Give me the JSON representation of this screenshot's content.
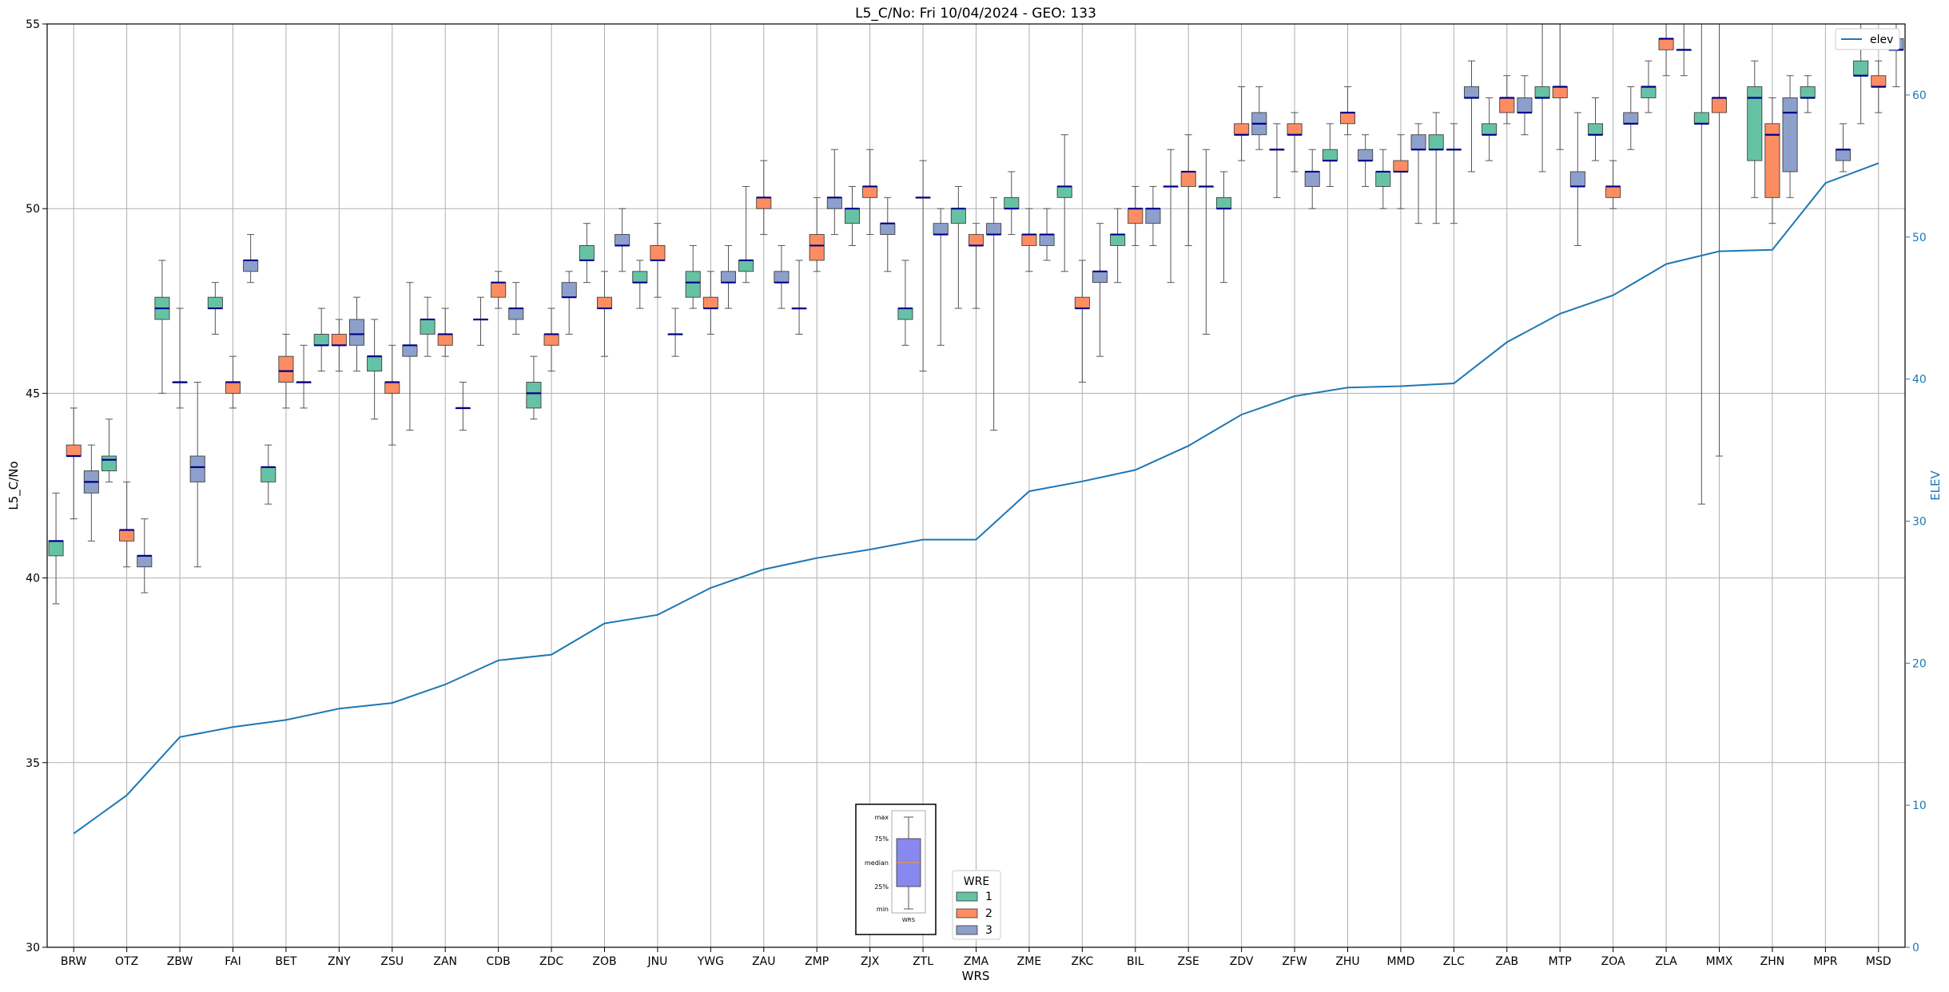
{
  "chart_data": {
    "type": "box",
    "title": "L5_C/No: Fri 10/04/2024 - GEO: 133",
    "xlabel": "WRS",
    "ylabel": "L5_C/No",
    "y2label": "ELEV",
    "ylim": [
      30,
      55
    ],
    "y2lim": [
      0,
      65
    ],
    "yticks": [
      "30",
      "35",
      "40",
      "45",
      "50",
      "55"
    ],
    "y2ticks": [
      "0",
      "10",
      "20",
      "30",
      "40",
      "50",
      "60"
    ],
    "grid": true,
    "categories": [
      "BRW",
      "OTZ",
      "ZBW",
      "FAI",
      "BET",
      "ZNY",
      "ZSU",
      "ZAN",
      "CDB",
      "ZDC",
      "ZOB",
      "JNU",
      "YWG",
      "ZAU",
      "ZMP",
      "ZJX",
      "ZTL",
      "ZMA",
      "ZME",
      "ZKC",
      "BIL",
      "ZSE",
      "ZDV",
      "ZFW",
      "ZHU",
      "MMD",
      "ZLC",
      "ZAB",
      "MTP",
      "ZOA",
      "ZLA",
      "MMX",
      "ZHN",
      "MPR",
      "MSD"
    ],
    "wre_colors": {
      "1": "#66c2a5",
      "2": "#fc8d62",
      "3": "#8da0cb"
    },
    "legend": {
      "title": "WRE",
      "placement": "lower-center",
      "entries": [
        {
          "label": "1",
          "color": "#66c2a5"
        },
        {
          "label": "2",
          "color": "#fc8d62"
        },
        {
          "label": "3",
          "color": "#8da0cb"
        }
      ]
    },
    "elev_legend": {
      "label": "elev",
      "placement": "top-right",
      "color": "#1f77b4"
    },
    "key_box": {
      "labels": [
        "max",
        "75%",
        "median",
        "25%",
        "min"
      ],
      "xlabel": "WRS",
      "color": "#8888ee"
    },
    "boxes": [
      {
        "cat": "BRW",
        "wre": 1,
        "min": 39.3,
        "q1": 40.6,
        "med": 41.0,
        "q3": 41.0,
        "max": 42.3
      },
      {
        "cat": "BRW",
        "wre": 2,
        "min": 41.6,
        "q1": 43.3,
        "med": 43.3,
        "q3": 43.6,
        "max": 44.6
      },
      {
        "cat": "BRW",
        "wre": 3,
        "min": 41.0,
        "q1": 42.3,
        "med": 42.6,
        "q3": 42.9,
        "max": 43.6
      },
      {
        "cat": "OTZ",
        "wre": 1,
        "min": 42.6,
        "q1": 42.9,
        "med": 43.2,
        "q3": 43.3,
        "max": 44.3
      },
      {
        "cat": "OTZ",
        "wre": 2,
        "min": 40.3,
        "q1": 41.0,
        "med": 41.3,
        "q3": 41.3,
        "max": 42.6
      },
      {
        "cat": "OTZ",
        "wre": 3,
        "min": 39.6,
        "q1": 40.3,
        "med": 40.6,
        "q3": 40.6,
        "max": 41.6
      },
      {
        "cat": "ZBW",
        "wre": 1,
        "min": 45.0,
        "q1": 47.0,
        "med": 47.3,
        "q3": 47.6,
        "max": 48.6
      },
      {
        "cat": "ZBW",
        "wre": 2,
        "min": 44.6,
        "q1": 45.3,
        "med": 45.3,
        "q3": 45.3,
        "max": 47.3
      },
      {
        "cat": "ZBW",
        "wre": 3,
        "min": 40.3,
        "q1": 42.6,
        "med": 43.0,
        "q3": 43.3,
        "max": 45.3
      },
      {
        "cat": "FAI",
        "wre": 1,
        "min": 46.6,
        "q1": 47.3,
        "med": 47.3,
        "q3": 47.6,
        "max": 48.0
      },
      {
        "cat": "FAI",
        "wre": 2,
        "min": 44.6,
        "q1": 45.0,
        "med": 45.3,
        "q3": 45.3,
        "max": 46.0
      },
      {
        "cat": "FAI",
        "wre": 3,
        "min": 48.0,
        "q1": 48.3,
        "med": 48.6,
        "q3": 48.6,
        "max": 49.3
      },
      {
        "cat": "BET",
        "wre": 1,
        "min": 42.0,
        "q1": 42.6,
        "med": 43.0,
        "q3": 43.0,
        "max": 43.6
      },
      {
        "cat": "BET",
        "wre": 2,
        "min": 44.6,
        "q1": 45.3,
        "med": 45.6,
        "q3": 46.0,
        "max": 46.6
      },
      {
        "cat": "BET",
        "wre": 3,
        "min": 44.6,
        "q1": 45.3,
        "med": 45.3,
        "q3": 45.3,
        "max": 46.3
      },
      {
        "cat": "ZNY",
        "wre": 1,
        "min": 45.6,
        "q1": 46.3,
        "med": 46.3,
        "q3": 46.6,
        "max": 47.3
      },
      {
        "cat": "ZNY",
        "wre": 2,
        "min": 45.6,
        "q1": 46.3,
        "med": 46.3,
        "q3": 46.6,
        "max": 47.0
      },
      {
        "cat": "ZNY",
        "wre": 3,
        "min": 45.6,
        "q1": 46.3,
        "med": 46.6,
        "q3": 47.0,
        "max": 47.6
      },
      {
        "cat": "ZSU",
        "wre": 1,
        "min": 44.3,
        "q1": 45.6,
        "med": 46.0,
        "q3": 46.0,
        "max": 47.0
      },
      {
        "cat": "ZSU",
        "wre": 2,
        "min": 43.6,
        "q1": 45.0,
        "med": 45.3,
        "q3": 45.3,
        "max": 46.3
      },
      {
        "cat": "ZSU",
        "wre": 3,
        "min": 44.0,
        "q1": 46.0,
        "med": 46.3,
        "q3": 46.3,
        "max": 48.0
      },
      {
        "cat": "ZAN",
        "wre": 1,
        "min": 46.0,
        "q1": 46.6,
        "med": 47.0,
        "q3": 47.0,
        "max": 47.6
      },
      {
        "cat": "ZAN",
        "wre": 2,
        "min": 46.0,
        "q1": 46.3,
        "med": 46.6,
        "q3": 46.6,
        "max": 47.3
      },
      {
        "cat": "ZAN",
        "wre": 3,
        "min": 44.0,
        "q1": 44.6,
        "med": 44.6,
        "q3": 44.6,
        "max": 45.3
      },
      {
        "cat": "CDB",
        "wre": 1,
        "min": 46.3,
        "q1": 47.0,
        "med": 47.0,
        "q3": 47.0,
        "max": 47.6
      },
      {
        "cat": "CDB",
        "wre": 2,
        "min": 47.3,
        "q1": 47.6,
        "med": 48.0,
        "q3": 48.0,
        "max": 48.3
      },
      {
        "cat": "CDB",
        "wre": 3,
        "min": 46.6,
        "q1": 47.0,
        "med": 47.3,
        "q3": 47.3,
        "max": 48.0
      },
      {
        "cat": "ZDC",
        "wre": 1,
        "min": 44.3,
        "q1": 44.6,
        "med": 45.0,
        "q3": 45.3,
        "max": 46.0
      },
      {
        "cat": "ZDC",
        "wre": 2,
        "min": 45.6,
        "q1": 46.3,
        "med": 46.6,
        "q3": 46.6,
        "max": 47.3
      },
      {
        "cat": "ZDC",
        "wre": 3,
        "min": 46.6,
        "q1": 47.6,
        "med": 47.6,
        "q3": 48.0,
        "max": 48.3
      },
      {
        "cat": "ZOB",
        "wre": 1,
        "min": 48.0,
        "q1": 48.6,
        "med": 48.6,
        "q3": 49.0,
        "max": 49.6
      },
      {
        "cat": "ZOB",
        "wre": 2,
        "min": 46.0,
        "q1": 47.3,
        "med": 47.3,
        "q3": 47.6,
        "max": 48.3
      },
      {
        "cat": "ZOB",
        "wre": 3,
        "min": 48.3,
        "q1": 49.0,
        "med": 49.0,
        "q3": 49.3,
        "max": 50.0
      },
      {
        "cat": "JNU",
        "wre": 1,
        "min": 47.3,
        "q1": 48.0,
        "med": 48.0,
        "q3": 48.3,
        "max": 48.6
      },
      {
        "cat": "JNU",
        "wre": 2,
        "min": 47.6,
        "q1": 48.6,
        "med": 48.6,
        "q3": 49.0,
        "max": 49.6
      },
      {
        "cat": "JNU",
        "wre": 3,
        "min": 46.0,
        "q1": 46.6,
        "med": 46.6,
        "q3": 46.6,
        "max": 47.3
      },
      {
        "cat": "YWG",
        "wre": 1,
        "min": 47.3,
        "q1": 47.6,
        "med": 48.0,
        "q3": 48.3,
        "max": 49.0
      },
      {
        "cat": "YWG",
        "wre": 2,
        "min": 46.6,
        "q1": 47.3,
        "med": 47.3,
        "q3": 47.6,
        "max": 48.3
      },
      {
        "cat": "YWG",
        "wre": 3,
        "min": 47.3,
        "q1": 48.0,
        "med": 48.0,
        "q3": 48.3,
        "max": 49.0
      },
      {
        "cat": "ZAU",
        "wre": 1,
        "min": 48.0,
        "q1": 48.3,
        "med": 48.6,
        "q3": 48.6,
        "max": 50.6
      },
      {
        "cat": "ZAU",
        "wre": 2,
        "min": 49.3,
        "q1": 50.0,
        "med": 50.3,
        "q3": 50.3,
        "max": 51.3
      },
      {
        "cat": "ZAU",
        "wre": 3,
        "min": 47.3,
        "q1": 48.0,
        "med": 48.0,
        "q3": 48.3,
        "max": 49.0
      },
      {
        "cat": "ZMP",
        "wre": 1,
        "min": 46.6,
        "q1": 47.3,
        "med": 47.3,
        "q3": 47.3,
        "max": 48.6
      },
      {
        "cat": "ZMP",
        "wre": 2,
        "min": 48.3,
        "q1": 48.6,
        "med": 49.0,
        "q3": 49.3,
        "max": 50.3
      },
      {
        "cat": "ZMP",
        "wre": 3,
        "min": 49.3,
        "q1": 50.0,
        "med": 50.3,
        "q3": 50.3,
        "max": 51.6
      },
      {
        "cat": "ZJX",
        "wre": 1,
        "min": 49.0,
        "q1": 49.6,
        "med": 50.0,
        "q3": 50.0,
        "max": 50.6
      },
      {
        "cat": "ZJX",
        "wre": 2,
        "min": 49.3,
        "q1": 50.3,
        "med": 50.6,
        "q3": 50.6,
        "max": 51.6
      },
      {
        "cat": "ZJX",
        "wre": 3,
        "min": 48.3,
        "q1": 49.3,
        "med": 49.6,
        "q3": 49.6,
        "max": 50.3
      },
      {
        "cat": "ZTL",
        "wre": 1,
        "min": 46.3,
        "q1": 47.0,
        "med": 47.3,
        "q3": 47.3,
        "max": 48.6
      },
      {
        "cat": "ZTL",
        "wre": 2,
        "min": 45.6,
        "q1": 50.3,
        "med": 50.3,
        "q3": 50.3,
        "max": 51.3
      },
      {
        "cat": "ZTL",
        "wre": 3,
        "min": 46.3,
        "q1": 49.3,
        "med": 49.3,
        "q3": 49.6,
        "max": 50.0
      },
      {
        "cat": "ZMA",
        "wre": 1,
        "min": 47.3,
        "q1": 49.6,
        "med": 50.0,
        "q3": 50.0,
        "max": 50.6
      },
      {
        "cat": "ZMA",
        "wre": 2,
        "min": 47.3,
        "q1": 49.0,
        "med": 49.0,
        "q3": 49.3,
        "max": 49.6
      },
      {
        "cat": "ZMA",
        "wre": 3,
        "min": 44.0,
        "q1": 49.3,
        "med": 49.3,
        "q3": 49.6,
        "max": 50.3
      },
      {
        "cat": "ZME",
        "wre": 1,
        "min": 49.3,
        "q1": 50.0,
        "med": 50.0,
        "q3": 50.3,
        "max": 51.0
      },
      {
        "cat": "ZME",
        "wre": 2,
        "min": 48.3,
        "q1": 49.0,
        "med": 49.3,
        "q3": 49.3,
        "max": 50.0
      },
      {
        "cat": "ZME",
        "wre": 3,
        "min": 48.6,
        "q1": 49.0,
        "med": 49.3,
        "q3": 49.3,
        "max": 50.0
      },
      {
        "cat": "ZKC",
        "wre": 1,
        "min": 48.3,
        "q1": 50.3,
        "med": 50.6,
        "q3": 50.6,
        "max": 52.0
      },
      {
        "cat": "ZKC",
        "wre": 2,
        "min": 45.3,
        "q1": 47.3,
        "med": 47.3,
        "q3": 47.6,
        "max": 48.6
      },
      {
        "cat": "ZKC",
        "wre": 3,
        "min": 46.0,
        "q1": 48.0,
        "med": 48.3,
        "q3": 48.3,
        "max": 49.6
      },
      {
        "cat": "BIL",
        "wre": 1,
        "min": 48.0,
        "q1": 49.0,
        "med": 49.3,
        "q3": 49.3,
        "max": 50.0
      },
      {
        "cat": "BIL",
        "wre": 2,
        "min": 49.0,
        "q1": 49.6,
        "med": 50.0,
        "q3": 50.0,
        "max": 50.6
      },
      {
        "cat": "BIL",
        "wre": 3,
        "min": 49.0,
        "q1": 49.6,
        "med": 50.0,
        "q3": 50.0,
        "max": 50.6
      },
      {
        "cat": "ZSE",
        "wre": 1,
        "min": 48.0,
        "q1": 50.6,
        "med": 50.6,
        "q3": 50.6,
        "max": 51.6
      },
      {
        "cat": "ZSE",
        "wre": 2,
        "min": 49.0,
        "q1": 50.6,
        "med": 51.0,
        "q3": 51.0,
        "max": 52.0
      },
      {
        "cat": "ZSE",
        "wre": 3,
        "min": 46.6,
        "q1": 50.6,
        "med": 50.6,
        "q3": 50.6,
        "max": 51.6
      },
      {
        "cat": "ZDV",
        "wre": 1,
        "min": 48.0,
        "q1": 50.0,
        "med": 50.0,
        "q3": 50.3,
        "max": 51.0
      },
      {
        "cat": "ZDV",
        "wre": 2,
        "min": 51.3,
        "q1": 52.0,
        "med": 52.0,
        "q3": 52.3,
        "max": 53.3
      },
      {
        "cat": "ZDV",
        "wre": 3,
        "min": 51.6,
        "q1": 52.0,
        "med": 52.3,
        "q3": 52.6,
        "max": 53.3
      },
      {
        "cat": "ZFW",
        "wre": 1,
        "min": 50.3,
        "q1": 51.6,
        "med": 51.6,
        "q3": 51.6,
        "max": 52.3
      },
      {
        "cat": "ZFW",
        "wre": 2,
        "min": 51.0,
        "q1": 52.0,
        "med": 52.0,
        "q3": 52.3,
        "max": 52.6
      },
      {
        "cat": "ZFW",
        "wre": 3,
        "min": 50.0,
        "q1": 50.6,
        "med": 51.0,
        "q3": 51.0,
        "max": 51.6
      },
      {
        "cat": "ZHU",
        "wre": 1,
        "min": 50.6,
        "q1": 51.3,
        "med": 51.3,
        "q3": 51.6,
        "max": 52.3
      },
      {
        "cat": "ZHU",
        "wre": 2,
        "min": 52.0,
        "q1": 52.3,
        "med": 52.6,
        "q3": 52.6,
        "max": 53.3
      },
      {
        "cat": "ZHU",
        "wre": 3,
        "min": 50.6,
        "q1": 51.3,
        "med": 51.3,
        "q3": 51.6,
        "max": 52.0
      },
      {
        "cat": "MMD",
        "wre": 1,
        "min": 50.0,
        "q1": 50.6,
        "med": 51.0,
        "q3": 51.0,
        "max": 51.6
      },
      {
        "cat": "MMD",
        "wre": 2,
        "min": 50.0,
        "q1": 51.0,
        "med": 51.0,
        "q3": 51.3,
        "max": 52.0
      },
      {
        "cat": "MMD",
        "wre": 3,
        "min": 49.6,
        "q1": 51.6,
        "med": 51.6,
        "q3": 52.0,
        "max": 52.3
      },
      {
        "cat": "ZLC",
        "wre": 1,
        "min": 49.6,
        "q1": 51.6,
        "med": 51.6,
        "q3": 52.0,
        "max": 52.6
      },
      {
        "cat": "ZLC",
        "wre": 2,
        "min": 49.6,
        "q1": 51.6,
        "med": 51.6,
        "q3": 51.6,
        "max": 52.3
      },
      {
        "cat": "ZLC",
        "wre": 3,
        "min": 51.0,
        "q1": 53.0,
        "med": 53.0,
        "q3": 53.3,
        "max": 54.0
      },
      {
        "cat": "ZAB",
        "wre": 1,
        "min": 51.3,
        "q1": 52.0,
        "med": 52.0,
        "q3": 52.3,
        "max": 53.0
      },
      {
        "cat": "ZAB",
        "wre": 2,
        "min": 52.3,
        "q1": 52.6,
        "med": 53.0,
        "q3": 53.0,
        "max": 53.6
      },
      {
        "cat": "ZAB",
        "wre": 3,
        "min": 52.0,
        "q1": 52.6,
        "med": 52.6,
        "q3": 53.0,
        "max": 53.6
      },
      {
        "cat": "MTP",
        "wre": 1,
        "min": 51.0,
        "q1": 53.0,
        "med": 53.0,
        "q3": 53.3,
        "max": 55.0
      },
      {
        "cat": "MTP",
        "wre": 2,
        "min": 51.6,
        "q1": 53.0,
        "med": 53.3,
        "q3": 53.3,
        "max": 55.0
      },
      {
        "cat": "MTP",
        "wre": 3,
        "min": 49.0,
        "q1": 50.6,
        "med": 50.6,
        "q3": 51.0,
        "max": 52.6
      },
      {
        "cat": "ZOA",
        "wre": 1,
        "min": 51.3,
        "q1": 52.0,
        "med": 52.0,
        "q3": 52.3,
        "max": 53.0
      },
      {
        "cat": "ZOA",
        "wre": 2,
        "min": 50.0,
        "q1": 50.3,
        "med": 50.6,
        "q3": 50.6,
        "max": 51.3
      },
      {
        "cat": "ZOA",
        "wre": 3,
        "min": 51.6,
        "q1": 52.3,
        "med": 52.3,
        "q3": 52.6,
        "max": 53.3
      },
      {
        "cat": "ZLA",
        "wre": 1,
        "min": 52.6,
        "q1": 53.0,
        "med": 53.3,
        "q3": 53.3,
        "max": 54.0
      },
      {
        "cat": "ZLA",
        "wre": 2,
        "min": 53.6,
        "q1": 54.3,
        "med": 54.6,
        "q3": 54.6,
        "max": 55.0
      },
      {
        "cat": "ZLA",
        "wre": 3,
        "min": 53.6,
        "q1": 54.3,
        "med": 54.3,
        "q3": 54.3,
        "max": 55.0
      },
      {
        "cat": "MMX",
        "wre": 1,
        "min": 42.0,
        "q1": 52.3,
        "med": 52.3,
        "q3": 52.6,
        "max": 55.0
      },
      {
        "cat": "MMX",
        "wre": 2,
        "min": 43.3,
        "q1": 52.6,
        "med": 53.0,
        "q3": 53.0,
        "max": 55.0
      },
      {
        "cat": "ZHN",
        "wre": 1,
        "min": 50.3,
        "q1": 51.3,
        "med": 53.0,
        "q3": 53.3,
        "max": 54.0
      },
      {
        "cat": "ZHN",
        "wre": 2,
        "min": 49.6,
        "q1": 50.3,
        "med": 52.0,
        "q3": 52.3,
        "max": 53.0
      },
      {
        "cat": "ZHN",
        "wre": 3,
        "min": 50.3,
        "q1": 51.0,
        "med": 52.6,
        "q3": 53.0,
        "max": 53.6
      },
      {
        "cat": "MPR",
        "wre": 1,
        "min": 52.6,
        "q1": 53.0,
        "med": 53.0,
        "q3": 53.3,
        "max": 53.6
      },
      {
        "cat": "MPR",
        "wre": 3,
        "min": 51.0,
        "q1": 51.3,
        "med": 51.6,
        "q3": 51.6,
        "max": 52.3
      },
      {
        "cat": "MSD",
        "wre": 1,
        "min": 52.3,
        "q1": 53.6,
        "med": 53.6,
        "q3": 54.0,
        "max": 55.0
      },
      {
        "cat": "MSD",
        "wre": 2,
        "min": 52.6,
        "q1": 53.3,
        "med": 53.3,
        "q3": 53.6,
        "max": 54.0
      },
      {
        "cat": "MSD",
        "wre": 3,
        "min": 53.3,
        "q1": 54.3,
        "med": 54.3,
        "q3": 54.6,
        "max": 55.0
      }
    ],
    "elev": [
      8.0,
      10.7,
      14.8,
      15.5,
      16.0,
      16.8,
      17.2,
      18.5,
      20.2,
      20.6,
      22.8,
      23.4,
      25.3,
      26.6,
      27.4,
      28.0,
      28.7,
      28.7,
      32.1,
      32.8,
      33.6,
      35.3,
      37.5,
      38.8,
      39.4,
      39.5,
      39.7,
      42.6,
      44.6,
      45.9,
      48.1,
      49.0,
      49.1,
      53.8,
      55.2
    ]
  }
}
